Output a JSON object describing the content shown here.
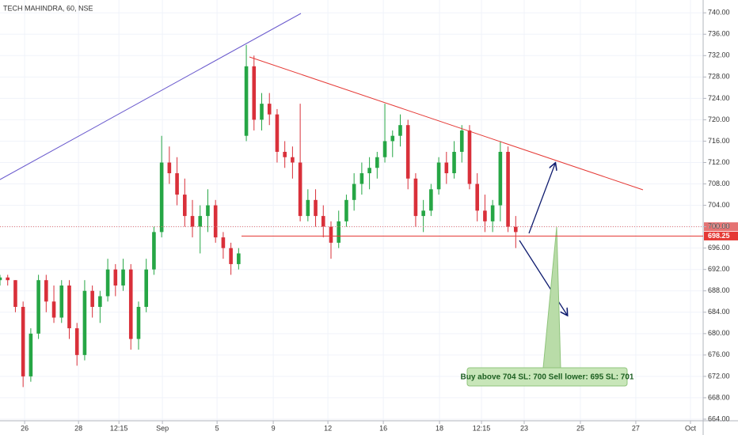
{
  "chart_data": {
    "type": "candlestick",
    "title": "TECH MAHINDRA, 60, NSE",
    "x": [
      0,
      2,
      4,
      6,
      8,
      10,
      12,
      14,
      16,
      18,
      20,
      22,
      24,
      26,
      28,
      30,
      32,
      34,
      36,
      38,
      40,
      42,
      44,
      46,
      48,
      50,
      52,
      54,
      56,
      58,
      60,
      62,
      64,
      66,
      68,
      70,
      72,
      74,
      76,
      78,
      80,
      82,
      84,
      86,
      88,
      90,
      92,
      94,
      96,
      98,
      100,
      102,
      104,
      106,
      108,
      110,
      112,
      114,
      116,
      118,
      120,
      122,
      124,
      126,
      128,
      130,
      132,
      134
    ],
    "open": [
      690,
      690.5,
      690,
      685,
      672,
      680,
      690,
      686,
      683,
      689,
      681,
      676,
      688,
      685,
      687,
      692,
      689,
      692,
      679,
      685,
      692,
      699,
      712,
      710,
      706,
      702,
      700,
      702,
      704,
      698,
      696,
      693,
      717,
      730,
      720,
      723,
      721,
      714,
      713,
      712,
      702,
      705,
      702,
      700,
      697,
      701,
      705,
      708,
      710,
      711,
      713,
      716,
      717,
      719,
      709,
      702,
      703,
      707,
      712,
      710,
      714,
      718,
      708,
      703,
      701,
      704,
      714,
      700
    ],
    "high": [
      691,
      691,
      690,
      686,
      681,
      691,
      691,
      689,
      690,
      690,
      682,
      690,
      689,
      688,
      694,
      693,
      694,
      693,
      686,
      694,
      700,
      717,
      715,
      713,
      709,
      705,
      704,
      707,
      705,
      699,
      697,
      696,
      734,
      732,
      725,
      725,
      722,
      716,
      715,
      723,
      707,
      707,
      704,
      701,
      703,
      706,
      710,
      712,
      713,
      714,
      723,
      718,
      721,
      720,
      710,
      705,
      708,
      713,
      714,
      716,
      719,
      719,
      710,
      706,
      705,
      716,
      715,
      702
    ],
    "low": [
      689,
      689,
      684,
      670,
      671,
      679,
      684,
      682,
      682,
      679,
      674,
      675,
      683,
      682,
      686,
      687,
      688,
      677,
      677,
      684,
      691,
      698,
      708,
      704,
      700,
      698,
      695,
      699,
      697,
      694,
      691,
      692,
      716,
      718,
      718,
      719,
      712,
      711,
      709,
      701,
      701,
      700,
      698,
      694,
      696,
      700,
      703,
      706,
      707,
      709,
      712,
      713,
      715,
      707,
      700,
      699,
      702,
      706,
      708,
      709,
      712,
      707,
      701,
      699,
      699,
      701,
      699,
      696
    ],
    "close": [
      690.5,
      690,
      685,
      672,
      680,
      690,
      686,
      683,
      689,
      681,
      676,
      688,
      685,
      687,
      692,
      689,
      692,
      679,
      685,
      692,
      699,
      712,
      710,
      706,
      702,
      700,
      702,
      704,
      698,
      696,
      693,
      695,
      730,
      720,
      723,
      721,
      714,
      713,
      712,
      702,
      705,
      702,
      700,
      697,
      701,
      705,
      708,
      710,
      711,
      713,
      716,
      717,
      719,
      709,
      702,
      703,
      707,
      712,
      710,
      714,
      718,
      708,
      703,
      701,
      704,
      714,
      700,
      699
    ],
    "up_color": "#26a645",
    "down_color": "#d9303a",
    "xlim": [
      0,
      182.7
    ],
    "ylim": [
      663.7,
      742.4
    ],
    "yticks": [
      {
        "value": 664,
        "label": "664.00"
      },
      {
        "value": 668,
        "label": "668.00"
      },
      {
        "value": 672,
        "label": "672.00"
      },
      {
        "value": 676,
        "label": "676.00"
      },
      {
        "value": 680,
        "label": "680.00"
      },
      {
        "value": 684,
        "label": "684.00"
      },
      {
        "value": 688,
        "label": "688.00"
      },
      {
        "value": 692,
        "label": "692.00"
      },
      {
        "value": 696,
        "label": "696.00"
      },
      {
        "value": 700,
        "label": "700.00"
      },
      {
        "value": 704,
        "label": "704.00"
      },
      {
        "value": 708,
        "label": "708.00"
      },
      {
        "value": 712,
        "label": "712.00"
      },
      {
        "value": 716,
        "label": "716.00"
      },
      {
        "value": 720,
        "label": "720.00"
      },
      {
        "value": 724,
        "label": "724.00"
      },
      {
        "value": 728,
        "label": "728.00"
      },
      {
        "value": 732,
        "label": "732.00"
      },
      {
        "value": 736,
        "label": "736.00"
      },
      {
        "value": 740,
        "label": "740.00"
      }
    ],
    "xticks": [
      {
        "value": 6.4,
        "label": "26"
      },
      {
        "value": 20.4,
        "label": "28"
      },
      {
        "value": 30.9,
        "label": "12:15"
      },
      {
        "value": 42.2,
        "label": "Sep"
      },
      {
        "value": 56.4,
        "label": "5"
      },
      {
        "value": 71,
        "label": "9"
      },
      {
        "value": 85.2,
        "label": "12"
      },
      {
        "value": 99.6,
        "label": "16"
      },
      {
        "value": 114.2,
        "label": "18"
      },
      {
        "value": 125.1,
        "label": "12:15"
      },
      {
        "value": 136.2,
        "label": "23"
      },
      {
        "value": 150.8,
        "label": "25"
      },
      {
        "value": 165.2,
        "label": "27"
      },
      {
        "value": 179.4,
        "label": "Oct"
      }
    ],
    "price_lines": [
      {
        "value": 700,
        "label": "700.00",
        "color": "#e57373"
      },
      {
        "value": 698.25,
        "label": "698.25",
        "color": "#e53935"
      }
    ],
    "annotation": "Buy above 704 SL: 700 Sell lower: 695 SL: 701"
  }
}
